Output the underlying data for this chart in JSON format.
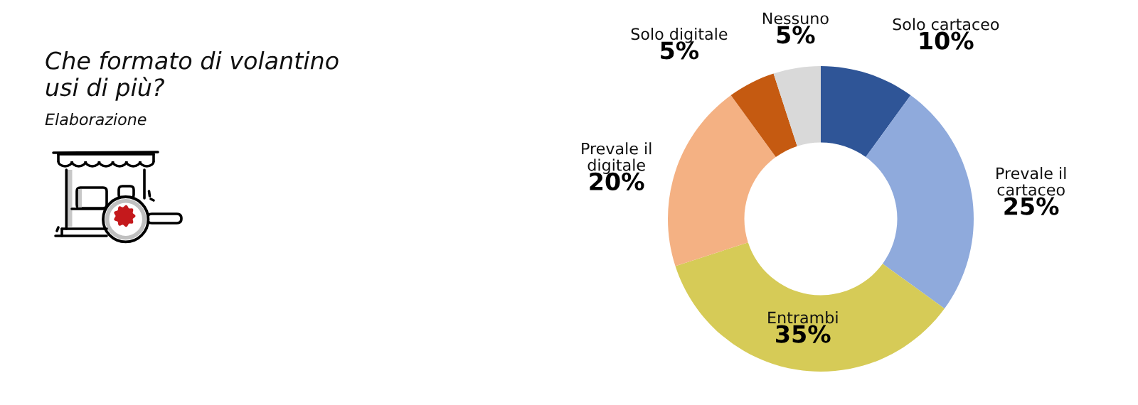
{
  "chart_data": {
    "type": "donut",
    "title": "Che formato di volantino\nusi di più?",
    "subtitle": "Elaborazione",
    "categories": [
      "Solo cartaceo",
      "Prevale il\ncartaceo",
      "Entrambi",
      "Prevale il\ndigitale",
      "Solo digitale",
      "Nessuno"
    ],
    "values": [
      10,
      25,
      35,
      20,
      5,
      5
    ],
    "colors": [
      "#2f5597",
      "#8faadc",
      "#d6cb57",
      "#f4b183",
      "#c55a11",
      "#d9d9d9"
    ],
    "value_labels": [
      "10%",
      "25%",
      "35%",
      "20%",
      "5%",
      "5%"
    ]
  }
}
